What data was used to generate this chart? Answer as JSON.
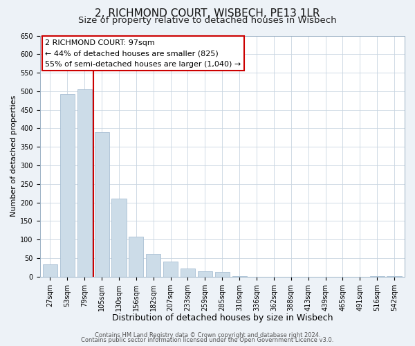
{
  "title": "2, RICHMOND COURT, WISBECH, PE13 1LR",
  "subtitle": "Size of property relative to detached houses in Wisbech",
  "xlabel": "Distribution of detached houses by size in Wisbech",
  "ylabel": "Number of detached properties",
  "bar_labels": [
    "27sqm",
    "53sqm",
    "79sqm",
    "105sqm",
    "130sqm",
    "156sqm",
    "182sqm",
    "207sqm",
    "233sqm",
    "259sqm",
    "285sqm",
    "310sqm",
    "336sqm",
    "362sqm",
    "388sqm",
    "413sqm",
    "439sqm",
    "465sqm",
    "491sqm",
    "516sqm",
    "542sqm"
  ],
  "bar_values": [
    33,
    492,
    505,
    390,
    210,
    107,
    62,
    41,
    22,
    14,
    12,
    1,
    0,
    0,
    0,
    0,
    0,
    0,
    0,
    1,
    1
  ],
  "bar_color": "#ccdce8",
  "bar_edge_color": "#aac0d4",
  "vline_x_index": 3,
  "vline_color": "#cc0000",
  "ylim": [
    0,
    650
  ],
  "yticks": [
    0,
    50,
    100,
    150,
    200,
    250,
    300,
    350,
    400,
    450,
    500,
    550,
    600,
    650
  ],
  "annotation_title": "2 RICHMOND COURT: 97sqm",
  "annotation_line1": "← 44% of detached houses are smaller (825)",
  "annotation_line2": "55% of semi-detached houses are larger (1,040) →",
  "annotation_box_facecolor": "#ffffff",
  "annotation_box_edgecolor": "#cc0000",
  "footer_line1": "Contains HM Land Registry data © Crown copyright and database right 2024.",
  "footer_line2": "Contains public sector information licensed under the Open Government Licence v3.0.",
  "bg_color": "#edf2f7",
  "plot_bg_color": "#ffffff",
  "grid_color": "#c8d4e0",
  "title_fontsize": 11,
  "subtitle_fontsize": 9.5,
  "xlabel_fontsize": 9,
  "ylabel_fontsize": 8,
  "tick_fontsize": 7,
  "annotation_fontsize": 8,
  "footer_fontsize": 6
}
